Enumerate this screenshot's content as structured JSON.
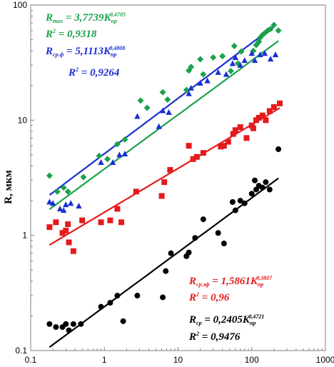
{
  "chart_data": {
    "type": "scatter",
    "xscale": "log",
    "yscale": "log",
    "xlim": [
      0.1,
      1000
    ],
    "ylim": [
      0.1,
      100
    ],
    "xticks": [
      "0.1",
      "1",
      "10",
      "100",
      "1000"
    ],
    "yticks": [
      "0.1",
      "1",
      "10",
      "100"
    ],
    "ylabel": "R, мкм",
    "grid": false,
    "series": [
      {
        "color": "#1aa24a",
        "marker": "diamond",
        "fit": {
          "a": 3.7739,
          "b": 0.4705
        },
        "points": [
          [
            0.18,
            3.3
          ],
          [
            0.23,
            2.4
          ],
          [
            0.28,
            2.6
          ],
          [
            0.32,
            2.4
          ],
          [
            0.52,
            3.2
          ],
          [
            0.85,
            4.9
          ],
          [
            1.1,
            4.6
          ],
          [
            1.5,
            6.2
          ],
          [
            1.9,
            6.8
          ],
          [
            3.1,
            14.8
          ],
          [
            3.8,
            12.8
          ],
          [
            6.2,
            17.5
          ],
          [
            7.2,
            15.1
          ],
          [
            13,
            18.3
          ],
          [
            14,
            27
          ],
          [
            15,
            29
          ],
          [
            20,
            33.8
          ],
          [
            22,
            25
          ],
          [
            30,
            35
          ],
          [
            40,
            36
          ],
          [
            52,
            26.7
          ],
          [
            58,
            44
          ],
          [
            65,
            31
          ],
          [
            72,
            39.5
          ],
          [
            105,
            40
          ],
          [
            115,
            45
          ],
          [
            125,
            48
          ],
          [
            130,
            52
          ],
          [
            140,
            55
          ],
          [
            150,
            57
          ],
          [
            165,
            60
          ],
          [
            180,
            62
          ],
          [
            200,
            67
          ],
          [
            230,
            60
          ]
        ]
      },
      {
        "color": "#1a2fd0",
        "marker": "triangle",
        "fit": {
          "a": 5.1113,
          "b": 0.4808
        },
        "points": [
          [
            0.18,
            1.95
          ],
          [
            0.2,
            1.9
          ],
          [
            0.25,
            1.7
          ],
          [
            0.28,
            1.65
          ],
          [
            0.3,
            1.85
          ],
          [
            0.35,
            1.9
          ],
          [
            0.45,
            1.8
          ],
          [
            0.9,
            4.3
          ],
          [
            1.3,
            4.3
          ],
          [
            1.6,
            5.0
          ],
          [
            1.9,
            5.1
          ],
          [
            2.8,
            10.8
          ],
          [
            5.5,
            8.8
          ],
          [
            6.2,
            12.1
          ],
          [
            7.5,
            11.7
          ],
          [
            14,
            17
          ],
          [
            15,
            19
          ],
          [
            20,
            21
          ],
          [
            25,
            22
          ],
          [
            35,
            26
          ],
          [
            45,
            25
          ],
          [
            55,
            31
          ],
          [
            60,
            35
          ],
          [
            70,
            30
          ],
          [
            80,
            33
          ],
          [
            100,
            38
          ],
          [
            110,
            33
          ],
          [
            130,
            37
          ],
          [
            150,
            38
          ],
          [
            180,
            34
          ],
          [
            210,
            37
          ]
        ]
      },
      {
        "color": "#e41a1c",
        "marker": "square",
        "fit": {
          "a": 1.5861,
          "b": 0.3807
        },
        "points": [
          [
            0.18,
            1.18
          ],
          [
            0.22,
            1.3
          ],
          [
            0.27,
            1.05
          ],
          [
            0.3,
            1.1
          ],
          [
            0.32,
            1.25
          ],
          [
            0.33,
            0.87
          ],
          [
            0.38,
            0.73
          ],
          [
            0.5,
            1.35
          ],
          [
            0.9,
            1.3
          ],
          [
            1.2,
            1.35
          ],
          [
            1.5,
            1.7
          ],
          [
            1.7,
            1.3
          ],
          [
            2.7,
            2.4
          ],
          [
            6,
            2.2
          ],
          [
            6.5,
            2.9
          ],
          [
            7.8,
            3.7
          ],
          [
            14,
            6
          ],
          [
            16,
            4.6
          ],
          [
            18,
            4.8
          ],
          [
            22,
            5.2
          ],
          [
            38,
            5.9
          ],
          [
            42,
            6.0
          ],
          [
            48,
            6.5
          ],
          [
            56,
            7.6
          ],
          [
            60,
            8.2
          ],
          [
            70,
            8.7
          ],
          [
            85,
            7.0
          ],
          [
            100,
            9.0
          ],
          [
            105,
            8.5
          ],
          [
            115,
            10.0
          ],
          [
            125,
            10.5
          ],
          [
            140,
            11.0
          ],
          [
            155,
            10.0
          ],
          [
            175,
            12.0
          ],
          [
            200,
            13.0
          ],
          [
            240,
            14.0
          ]
        ]
      },
      {
        "color": "#000000",
        "marker": "circle",
        "fit": {
          "a": 0.2405,
          "b": 0.4721
        },
        "points": [
          [
            0.18,
            0.17
          ],
          [
            0.22,
            0.16
          ],
          [
            0.27,
            0.16
          ],
          [
            0.3,
            0.17
          ],
          [
            0.33,
            0.15
          ],
          [
            0.38,
            0.17
          ],
          [
            0.48,
            0.17
          ],
          [
            0.9,
            0.24
          ],
          [
            1.2,
            0.26
          ],
          [
            1.5,
            0.3
          ],
          [
            1.8,
            0.18
          ],
          [
            2.8,
            0.3
          ],
          [
            6.2,
            0.29
          ],
          [
            6.8,
            0.49
          ],
          [
            8,
            0.7
          ],
          [
            13,
            0.66
          ],
          [
            14,
            0.71
          ],
          [
            17,
            0.95
          ],
          [
            22,
            1.38
          ],
          [
            35,
            1.05
          ],
          [
            42,
            0.85
          ],
          [
            55,
            1.95
          ],
          [
            60,
            1.65
          ],
          [
            70,
            2.0
          ],
          [
            80,
            1.9
          ],
          [
            100,
            2.3
          ],
          [
            110,
            3.0
          ],
          [
            115,
            2.5
          ],
          [
            125,
            2.7
          ],
          [
            140,
            2.6
          ],
          [
            155,
            2.9
          ],
          [
            175,
            2.5
          ],
          [
            230,
            5.6
          ]
        ]
      }
    ]
  },
  "annotations": {
    "green_eq": {
      "prefix": "R",
      "sub": "max",
      "mid": " = 3,7739",
      "k": "K",
      "ksub": "пр",
      "exp": "0,4705"
    },
    "green_r2": {
      "r": "R",
      "sup": "2",
      "val": " = 0,9318"
    },
    "blue_eq": {
      "prefix": "R",
      "sub": "ср.ф",
      "mid": " = 5,1113",
      "k": "K",
      "ksub": "пр",
      "exp": "0,4808"
    },
    "blue_r2": {
      "r": "R",
      "sup": "2",
      "val": " = 0,9264"
    },
    "red_eq": {
      "prefix": "R",
      "sub": "ср.эф",
      "mid": " = 1,5861",
      "k": "K",
      "ksub": "пр",
      "exp": "0,3807"
    },
    "red_r2": {
      "r": "R",
      "sup": "2",
      "val": " = 0,96"
    },
    "black_eq": {
      "prefix": "R",
      "sub": "ср",
      "mid": " = 0,2405",
      "k": "K",
      "ksub": "пр",
      "exp": "0,4721"
    },
    "black_r2": {
      "r": "R",
      "sup": "2",
      "val": " = 0,9476"
    }
  }
}
